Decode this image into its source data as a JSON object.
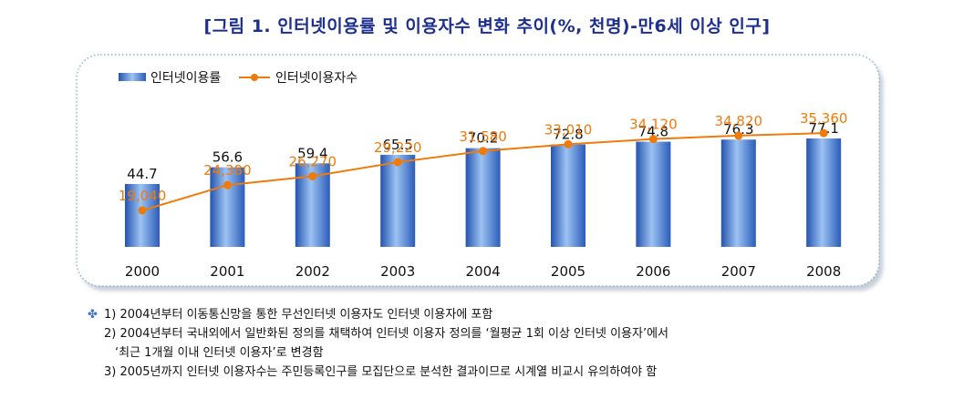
{
  "title": "[그림 1. 인터넷이용률 및 이용자수 변화 추이(%, 천명)-만6세 이상 인구]",
  "chart_data": {
    "type": "bar+line",
    "categories": [
      "2000",
      "2001",
      "2002",
      "2003",
      "2004",
      "2005",
      "2006",
      "2007",
      "2008"
    ],
    "series": [
      {
        "name": "인터넷이용률",
        "kind": "bar",
        "unit": "%",
        "values": [
          44.7,
          56.6,
          59.4,
          65.5,
          70.2,
          72.8,
          74.8,
          76.3,
          77.1
        ],
        "labels": [
          "44.7",
          "56.6",
          "59.4",
          "65.5",
          "70.2",
          "72.8",
          "74.8",
          "76.3",
          "77.1"
        ],
        "color": "#3f73c8"
      },
      {
        "name": "인터넷이용자수",
        "kind": "line",
        "unit": "천명",
        "values": [
          19040,
          24380,
          26270,
          29220,
          31580,
          33010,
          34120,
          34820,
          35360
        ],
        "labels": [
          "19,040",
          "24,380",
          "26,270",
          "29,220",
          "31,580",
          "33,010",
          "34,120",
          "34,820",
          "35,360"
        ],
        "color": "#f07a0a"
      }
    ],
    "legend": [
      "인터넷이용률",
      "인터넷이용자수"
    ],
    "legend_position": "top-left",
    "bar_range": [
      0,
      100
    ],
    "line_range": [
      0,
      40000
    ]
  },
  "notes": {
    "bullet": "✤",
    "n1": "1) 2004년부터 이동통신망을 통한 무선인터넷 이용자도 인터넷 이용자에 포함",
    "n2": "2) 2004년부터 국내외에서 일반화된 정의를 채택하여 인터넷 이용자 정의를 ‘월평균 1회 이상 인터넷 이용자’에서",
    "n2b": "‘최근 1개월 이내 인터넷 이용자’로 변경함",
    "n3": "3) 2005년까지 인터넷 이용자수는 주민등록인구를 모집단으로 분석한 결과이므로 시계열 비교시 유의하여야 함"
  }
}
